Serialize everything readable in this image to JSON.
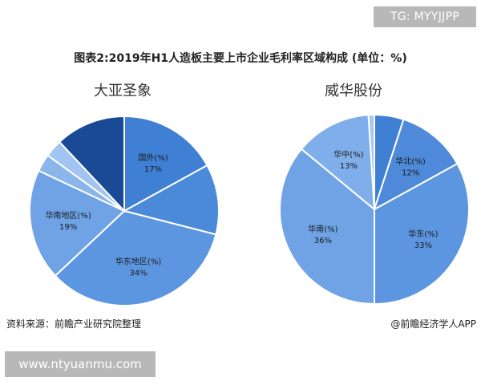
{
  "watermark_tag": "TG: MYYJJPP",
  "bottom_url": "www.ntyuanmu.com",
  "footer": {
    "source": "资料来源：前瞻产业研究院整理",
    "credit": "@前瞻经济学人APP"
  },
  "chart_data": [
    {
      "type": "pie",
      "title": "图表2:2019年H1人造板主要上市企业毛利率区域构成 (单位：%)",
      "subtitle": "大亚圣象",
      "slices": [
        {
          "label": "国外(%)",
          "value": 17,
          "value_label": "17%",
          "color": "#3f7fd4"
        },
        {
          "label": "",
          "value": 12,
          "value_label": "",
          "color": "#4a8ad9"
        },
        {
          "label": "华东地区(%)",
          "value": 34,
          "value_label": "34%",
          "color": "#5d96e0"
        },
        {
          "label": "华南地区(%)",
          "value": 19,
          "value_label": "19%",
          "color": "#6fa3e6"
        },
        {
          "label": "",
          "value": 3,
          "value_label": "",
          "color": "#8ab6ec"
        },
        {
          "label": "",
          "value": 3,
          "value_label": "",
          "color": "#a1c4f0"
        },
        {
          "label": "",
          "value": 12,
          "value_label": "",
          "color": "#1a4a96"
        }
      ]
    },
    {
      "type": "pie",
      "subtitle": "威华股份",
      "slices": [
        {
          "label": "",
          "value": 5,
          "value_label": "",
          "color": "#3f7fd4"
        },
        {
          "label": "华北(%)",
          "value": 12,
          "value_label": "12%",
          "color": "#4e8ad9"
        },
        {
          "label": "华东(%)",
          "value": 33,
          "value_label": "33%",
          "color": "#5d96e0"
        },
        {
          "label": "华南(%)",
          "value": 36,
          "value_label": "36%",
          "color": "#6fa3e6"
        },
        {
          "label": "华中(%)",
          "value": 13,
          "value_label": "13%",
          "color": "#80aeea"
        },
        {
          "label": "",
          "value": 1,
          "value_label": "",
          "color": "#a8c8f0"
        }
      ]
    }
  ]
}
